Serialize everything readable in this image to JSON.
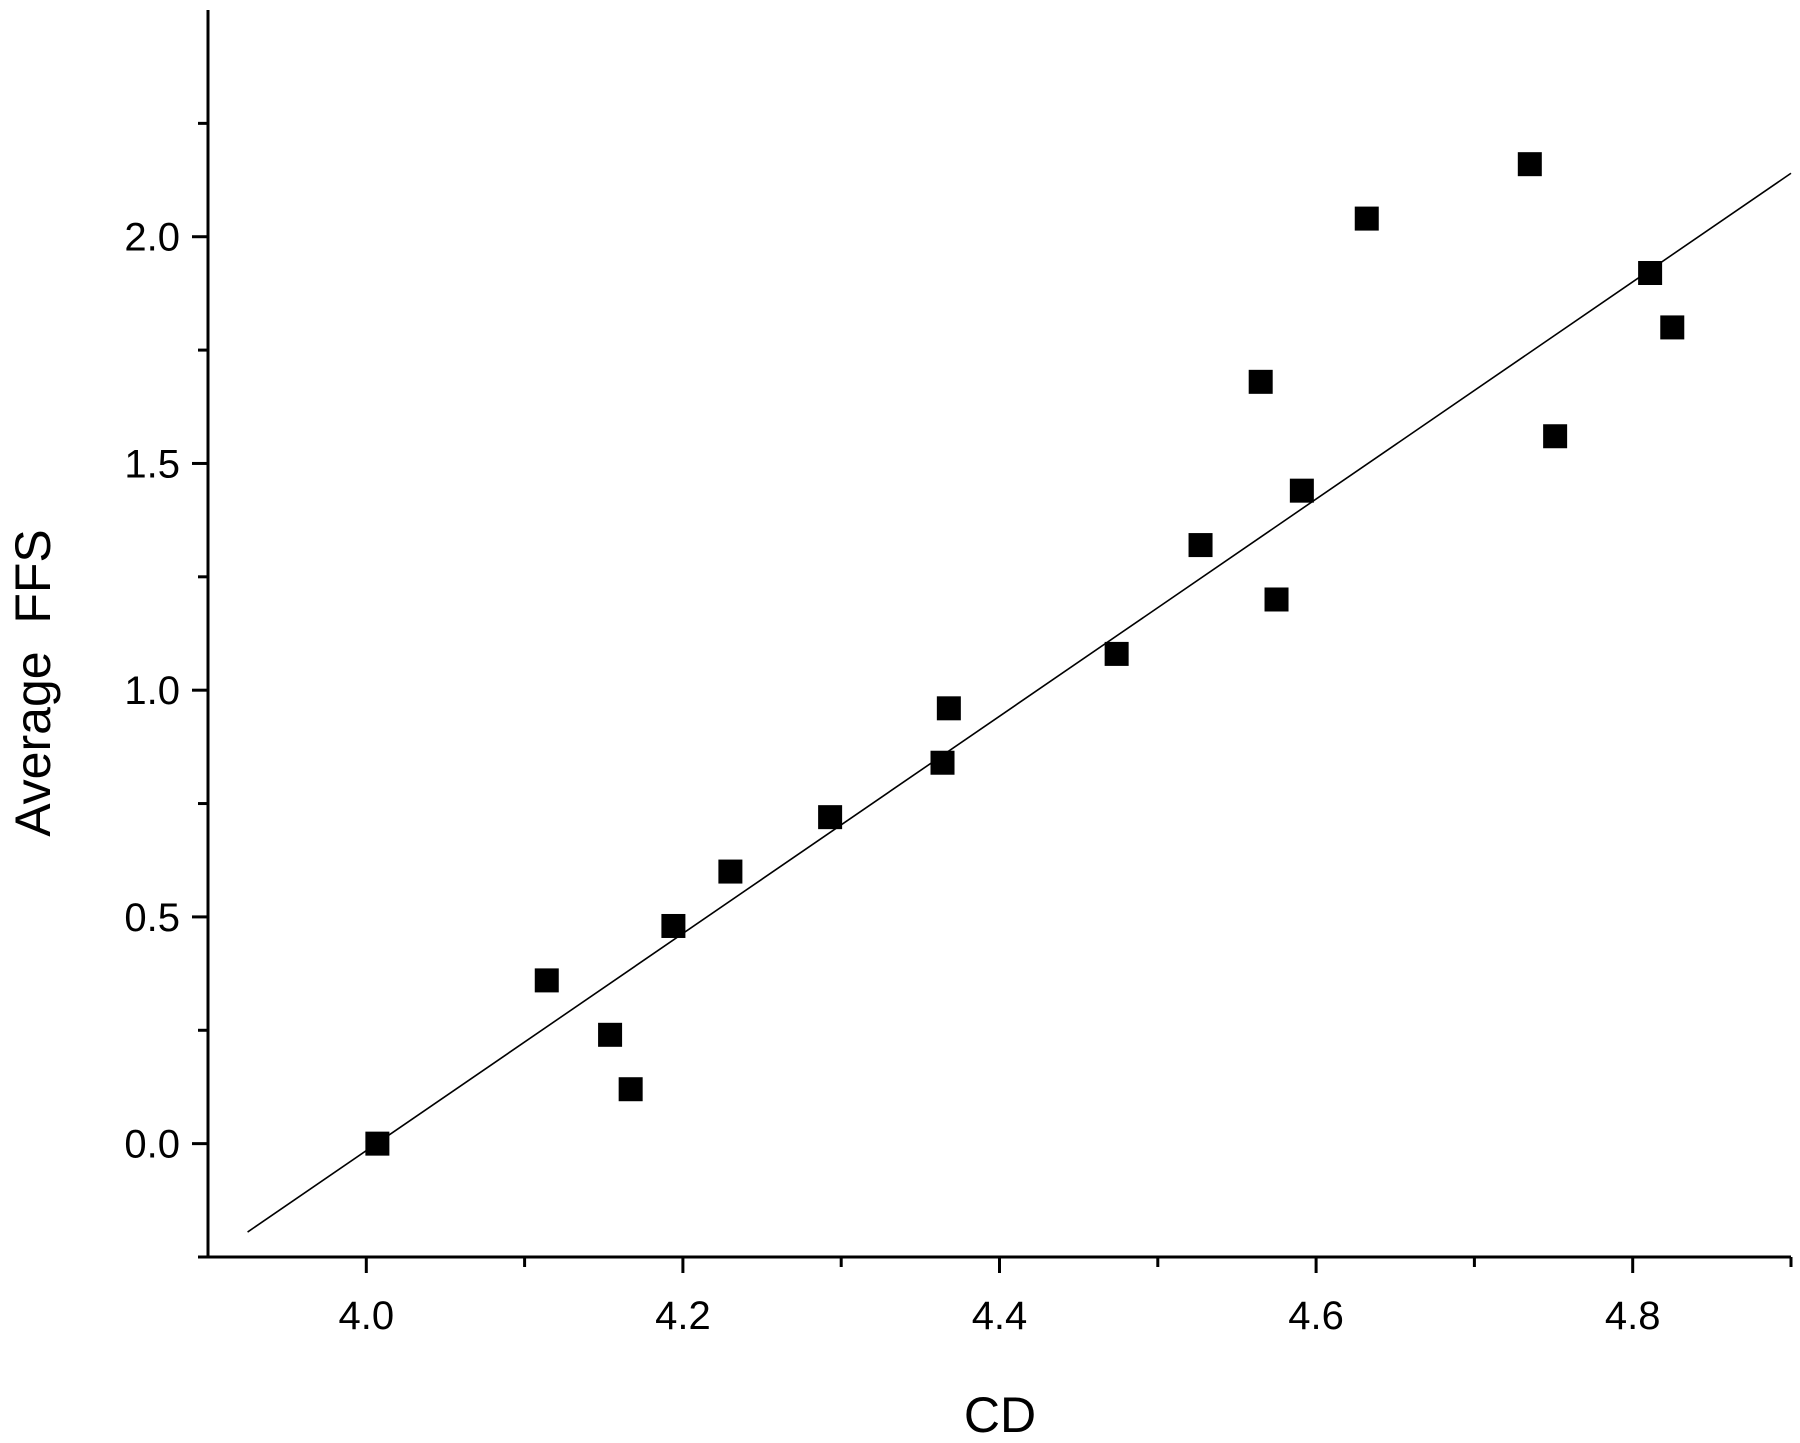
{
  "chart_data": {
    "type": "scatter",
    "xlabel": "CD",
    "ylabel": "Average  FFS",
    "xlim": [
      3.9,
      4.9
    ],
    "ylim": [
      -0.25,
      2.5
    ],
    "x_ticks": [
      4.0,
      4.2,
      4.4,
      4.6,
      4.8
    ],
    "x_tick_labels": [
      "4.0",
      "4.2",
      "4.4",
      "4.6",
      "4.8"
    ],
    "x_minor_ticks": [
      4.1,
      4.3,
      4.5,
      4.7,
      4.9
    ],
    "y_ticks": [
      0.0,
      0.5,
      1.0,
      1.5,
      2.0
    ],
    "y_tick_labels": [
      "0.0",
      "0.5",
      "1.0",
      "1.5",
      "2.0"
    ],
    "y_minor_ticks": [
      -0.25,
      0.25,
      0.75,
      1.25,
      1.75,
      2.25
    ],
    "grid": false,
    "legend": false,
    "marker": "square",
    "marker_color": "#000000",
    "points": [
      {
        "x": 4.007,
        "y": 0.0
      },
      {
        "x": 4.114,
        "y": 0.36
      },
      {
        "x": 4.154,
        "y": 0.24
      },
      {
        "x": 4.167,
        "y": 0.12
      },
      {
        "x": 4.194,
        "y": 0.48
      },
      {
        "x": 4.23,
        "y": 0.6
      },
      {
        "x": 4.293,
        "y": 0.72
      },
      {
        "x": 4.364,
        "y": 0.84
      },
      {
        "x": 4.368,
        "y": 0.96
      },
      {
        "x": 4.474,
        "y": 1.08
      },
      {
        "x": 4.527,
        "y": 1.32
      },
      {
        "x": 4.565,
        "y": 1.68
      },
      {
        "x": 4.575,
        "y": 1.2
      },
      {
        "x": 4.591,
        "y": 1.44
      },
      {
        "x": 4.632,
        "y": 2.04
      },
      {
        "x": 4.735,
        "y": 2.16
      },
      {
        "x": 4.751,
        "y": 1.56
      },
      {
        "x": 4.811,
        "y": 1.92
      },
      {
        "x": 4.825,
        "y": 1.8
      }
    ],
    "fit_line": {
      "x": [
        3.925,
        4.9
      ],
      "y": [
        -0.195,
        2.14
      ]
    }
  }
}
